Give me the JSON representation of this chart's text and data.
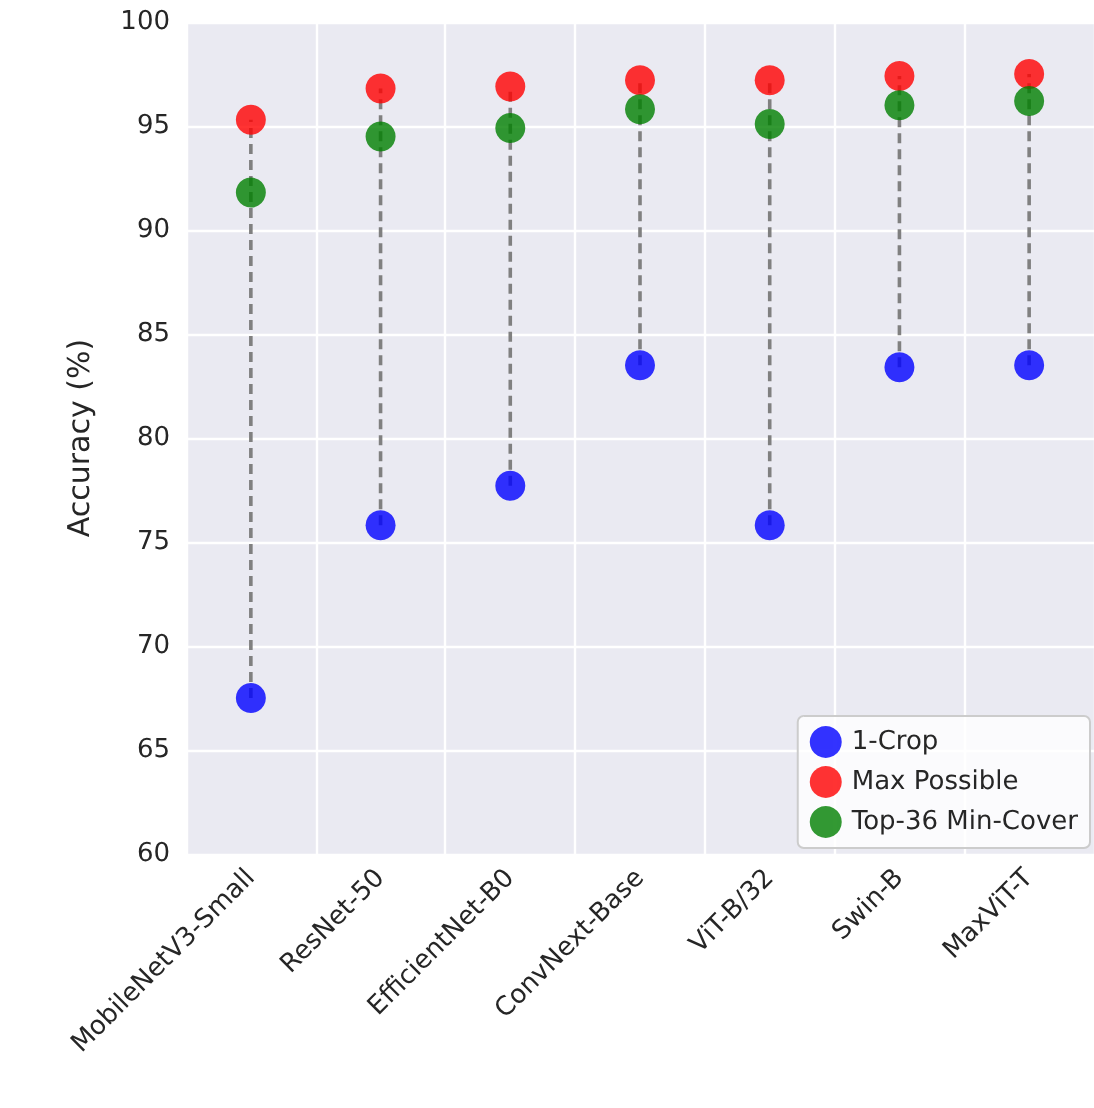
{
  "chart_data": {
    "type": "scatter",
    "ylabel": "Accuracy (%)",
    "categories": [
      "MobileNetV3-Small",
      "ResNet-50",
      "EfficientNet-B0",
      "ConvNext-Base",
      "ViT-B/32",
      "Swin-B",
      "MaxViT-T"
    ],
    "series": [
      {
        "name": "1-Crop",
        "color": "#0000ff",
        "values": [
          67.5,
          75.8,
          77.7,
          83.5,
          75.8,
          83.4,
          83.5
        ]
      },
      {
        "name": "Max Possible",
        "color": "#ff0000",
        "values": [
          95.3,
          96.8,
          96.9,
          97.2,
          97.2,
          97.4,
          97.5
        ]
      },
      {
        "name": "Top-36 Min-Cover",
        "color": "#008000",
        "values": [
          91.8,
          94.5,
          94.9,
          95.8,
          95.1,
          96.0,
          96.2
        ]
      }
    ],
    "ylim": [
      60,
      100
    ],
    "yticks": [
      60,
      65,
      70,
      75,
      80,
      85,
      90,
      95,
      100
    ],
    "grid": true,
    "legend": "bottom right",
    "marker": "circle"
  }
}
